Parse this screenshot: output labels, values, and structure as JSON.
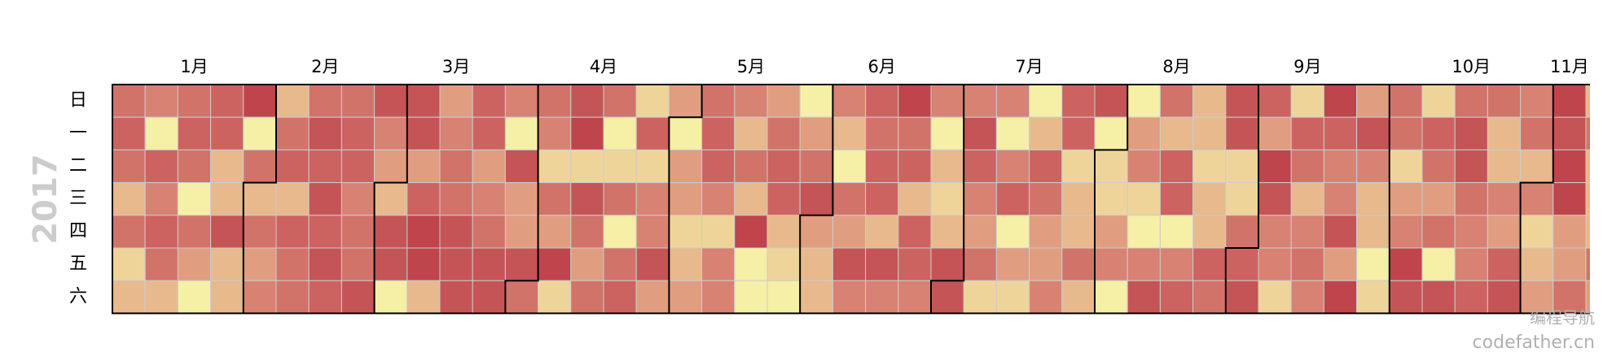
{
  "chart_data": {
    "type": "calendar",
    "year_label": "2017",
    "day_labels": [
      "日",
      "一",
      "二",
      "三",
      "四",
      "五",
      "六"
    ],
    "month_labels": [
      "1月",
      "2月",
      "3月",
      "4月",
      "5月",
      "6月",
      "7月",
      "8月",
      "9月",
      "10月",
      "11月"
    ],
    "vlim": [
      1,
      9
    ],
    "colors": [
      "#f6efa6",
      "#d88273",
      "#bf444c"
    ],
    "values": [
      6,
      7,
      6,
      3,
      6,
      2,
      3,
      5,
      1,
      7,
      5,
      7,
      6,
      3,
      6,
      7,
      6,
      1,
      6,
      4,
      1,
      7,
      7,
      3,
      3,
      8,
      3,
      3,
      9,
      1,
      6,
      3,
      6,
      4,
      5,
      3,
      6,
      7,
      3,
      7,
      6,
      6,
      6,
      8,
      7,
      8,
      7,
      8,
      7,
      6,
      7,
      7,
      5,
      6,
      6,
      8,
      8,
      5,
      4,
      3,
      8,
      8,
      1,
      8,
      8,
      4,
      7,
      9,
      9,
      3,
      4,
      5,
      6,
      6,
      8,
      8,
      8,
      7,
      7,
      4,
      5,
      6,
      8,
      8,
      5,
      1,
      8,
      4,
      4,
      8,
      6,
      6,
      5,
      2,
      6,
      4,
      9,
      2,
      8,
      9,
      2,
      8,
      6,
      4,
      6,
      6,
      1,
      2,
      6,
      1,
      6,
      7,
      2,
      7,
      2,
      5,
      5,
      8,
      4,
      4,
      1,
      4,
      4,
      2,
      3,
      4,
      6,
      7,
      7,
      5,
      2,
      5,
      5,
      5,
      3,
      6,
      3,
      9,
      1,
      1,
      4,
      6,
      7,
      7,
      3,
      2,
      1,
      1,
      4,
      6,
      8,
      4,
      3,
      3,
      5,
      3,
      1,
      6,
      4,
      8,
      5,
      7,
      6,
      7,
      7,
      3,
      8,
      5,
      9,
      6,
      7,
      3,
      7,
      7,
      5,
      5,
      1,
      3,
      2,
      3,
      8,
      8,
      5,
      8,
      7,
      5,
      4,
      6,
      2,
      5,
      1,
      5,
      7,
      1,
      4,
      2,
      1,
      3,
      7,
      6,
      4,
      4,
      5,
      7,
      7,
      2,
      3,
      3,
      6,
      3,
      8,
      1,
      2,
      2,
      4,
      5,
      1,
      1,
      4,
      5,
      2,
      1,
      5,
      8,
      6,
      3,
      7,
      7,
      1,
      5,
      7,
      3,
      3,
      2,
      3,
      3,
      7,
      6,
      8,
      8,
      2,
      2,
      6,
      7,
      8,
      7,
      4,
      9,
      8,
      5,
      5,
      2,
      2,
      7,
      6,
      3,
      5,
      6,
      5,
      9,
      7,
      5,
      5,
      8,
      4,
      9,
      4,
      8,
      5,
      3,
      3,
      1,
      2,
      6,
      6,
      2,
      4,
      5,
      9,
      8,
      2,
      7,
      6,
      4,
      6,
      1,
      8,
      6,
      8,
      8,
      6,
      5,
      5,
      7,
      6,
      3,
      3,
      5,
      4,
      7,
      8,
      5,
      6,
      3,
      5,
      2,
      3,
      4,
      9,
      8,
      9,
      9,
      4,
      4,
      6,
      3,
      6,
      3,
      3,
      3,
      6,
      4
    ]
  },
  "watermark": {
    "line1": "编程导航",
    "line2": "codefather.cn"
  }
}
